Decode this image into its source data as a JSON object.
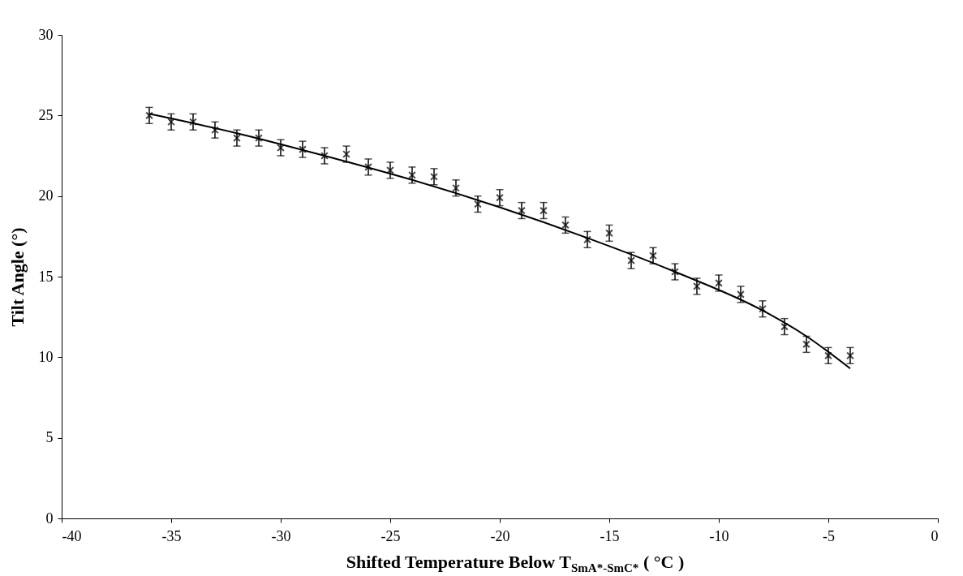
{
  "chart_data": {
    "type": "scatter",
    "xlabel": "Shifted Temperature Below T$_{SmA*-SmC*}$  ( °C )",
    "ylabel": "Tilt Angle (°)",
    "x": [
      -36,
      -35,
      -34,
      -33,
      -32,
      -31,
      -30,
      -29,
      -28,
      -27,
      -26,
      -25,
      -24,
      -23,
      -22,
      -21,
      -20,
      -19,
      -18,
      -17,
      -16,
      -15,
      -14,
      -13,
      -12,
      -11,
      -10,
      -9,
      -8,
      -7,
      -6,
      -5,
      -4
    ],
    "series": [
      {
        "color": "#000000",
        "marker": "cross",
        "values": [
          25.0,
          24.6,
          24.6,
          24.1,
          23.6,
          23.6,
          23.0,
          22.9,
          22.5,
          22.6,
          21.8,
          21.6,
          21.3,
          21.2,
          20.5,
          19.5,
          19.9,
          19.1,
          19.1,
          18.2,
          17.3,
          17.7,
          16.0,
          16.3,
          15.3,
          14.4,
          14.6,
          13.9,
          13.0,
          11.9,
          10.8,
          10.1,
          10.1
        ],
        "errors": [
          0.5,
          0.5,
          0.5,
          0.5,
          0.5,
          0.5,
          0.5,
          0.5,
          0.5,
          0.5,
          0.5,
          0.5,
          0.5,
          0.5,
          0.5,
          0.5,
          0.5,
          0.5,
          0.5,
          0.5,
          0.5,
          0.5,
          0.5,
          0.5,
          0.5,
          0.5,
          0.5,
          0.5,
          0.5,
          0.5,
          0.5,
          0.5,
          0.5
        ]
      },
      {
        "type": "line",
        "color": "#000000",
        "x": [
          -36,
          -32,
          -28,
          -24,
          -20,
          -16,
          -12,
          -8,
          -6,
          -4
        ],
        "values": [
          25.1,
          23.9,
          22.5,
          21.0,
          19.3,
          17.4,
          15.3,
          12.9,
          11.3,
          9.3
        ]
      }
    ],
    "xlim": [
      -40,
      0
    ],
    "xticks": [
      -40,
      -35,
      -30,
      -25,
      -20,
      -15,
      -10,
      -5,
      0
    ],
    "ylim": [
      0,
      30
    ],
    "yticks": [
      0,
      5,
      10,
      15,
      20,
      25,
      30
    ],
    "grid": false
  }
}
